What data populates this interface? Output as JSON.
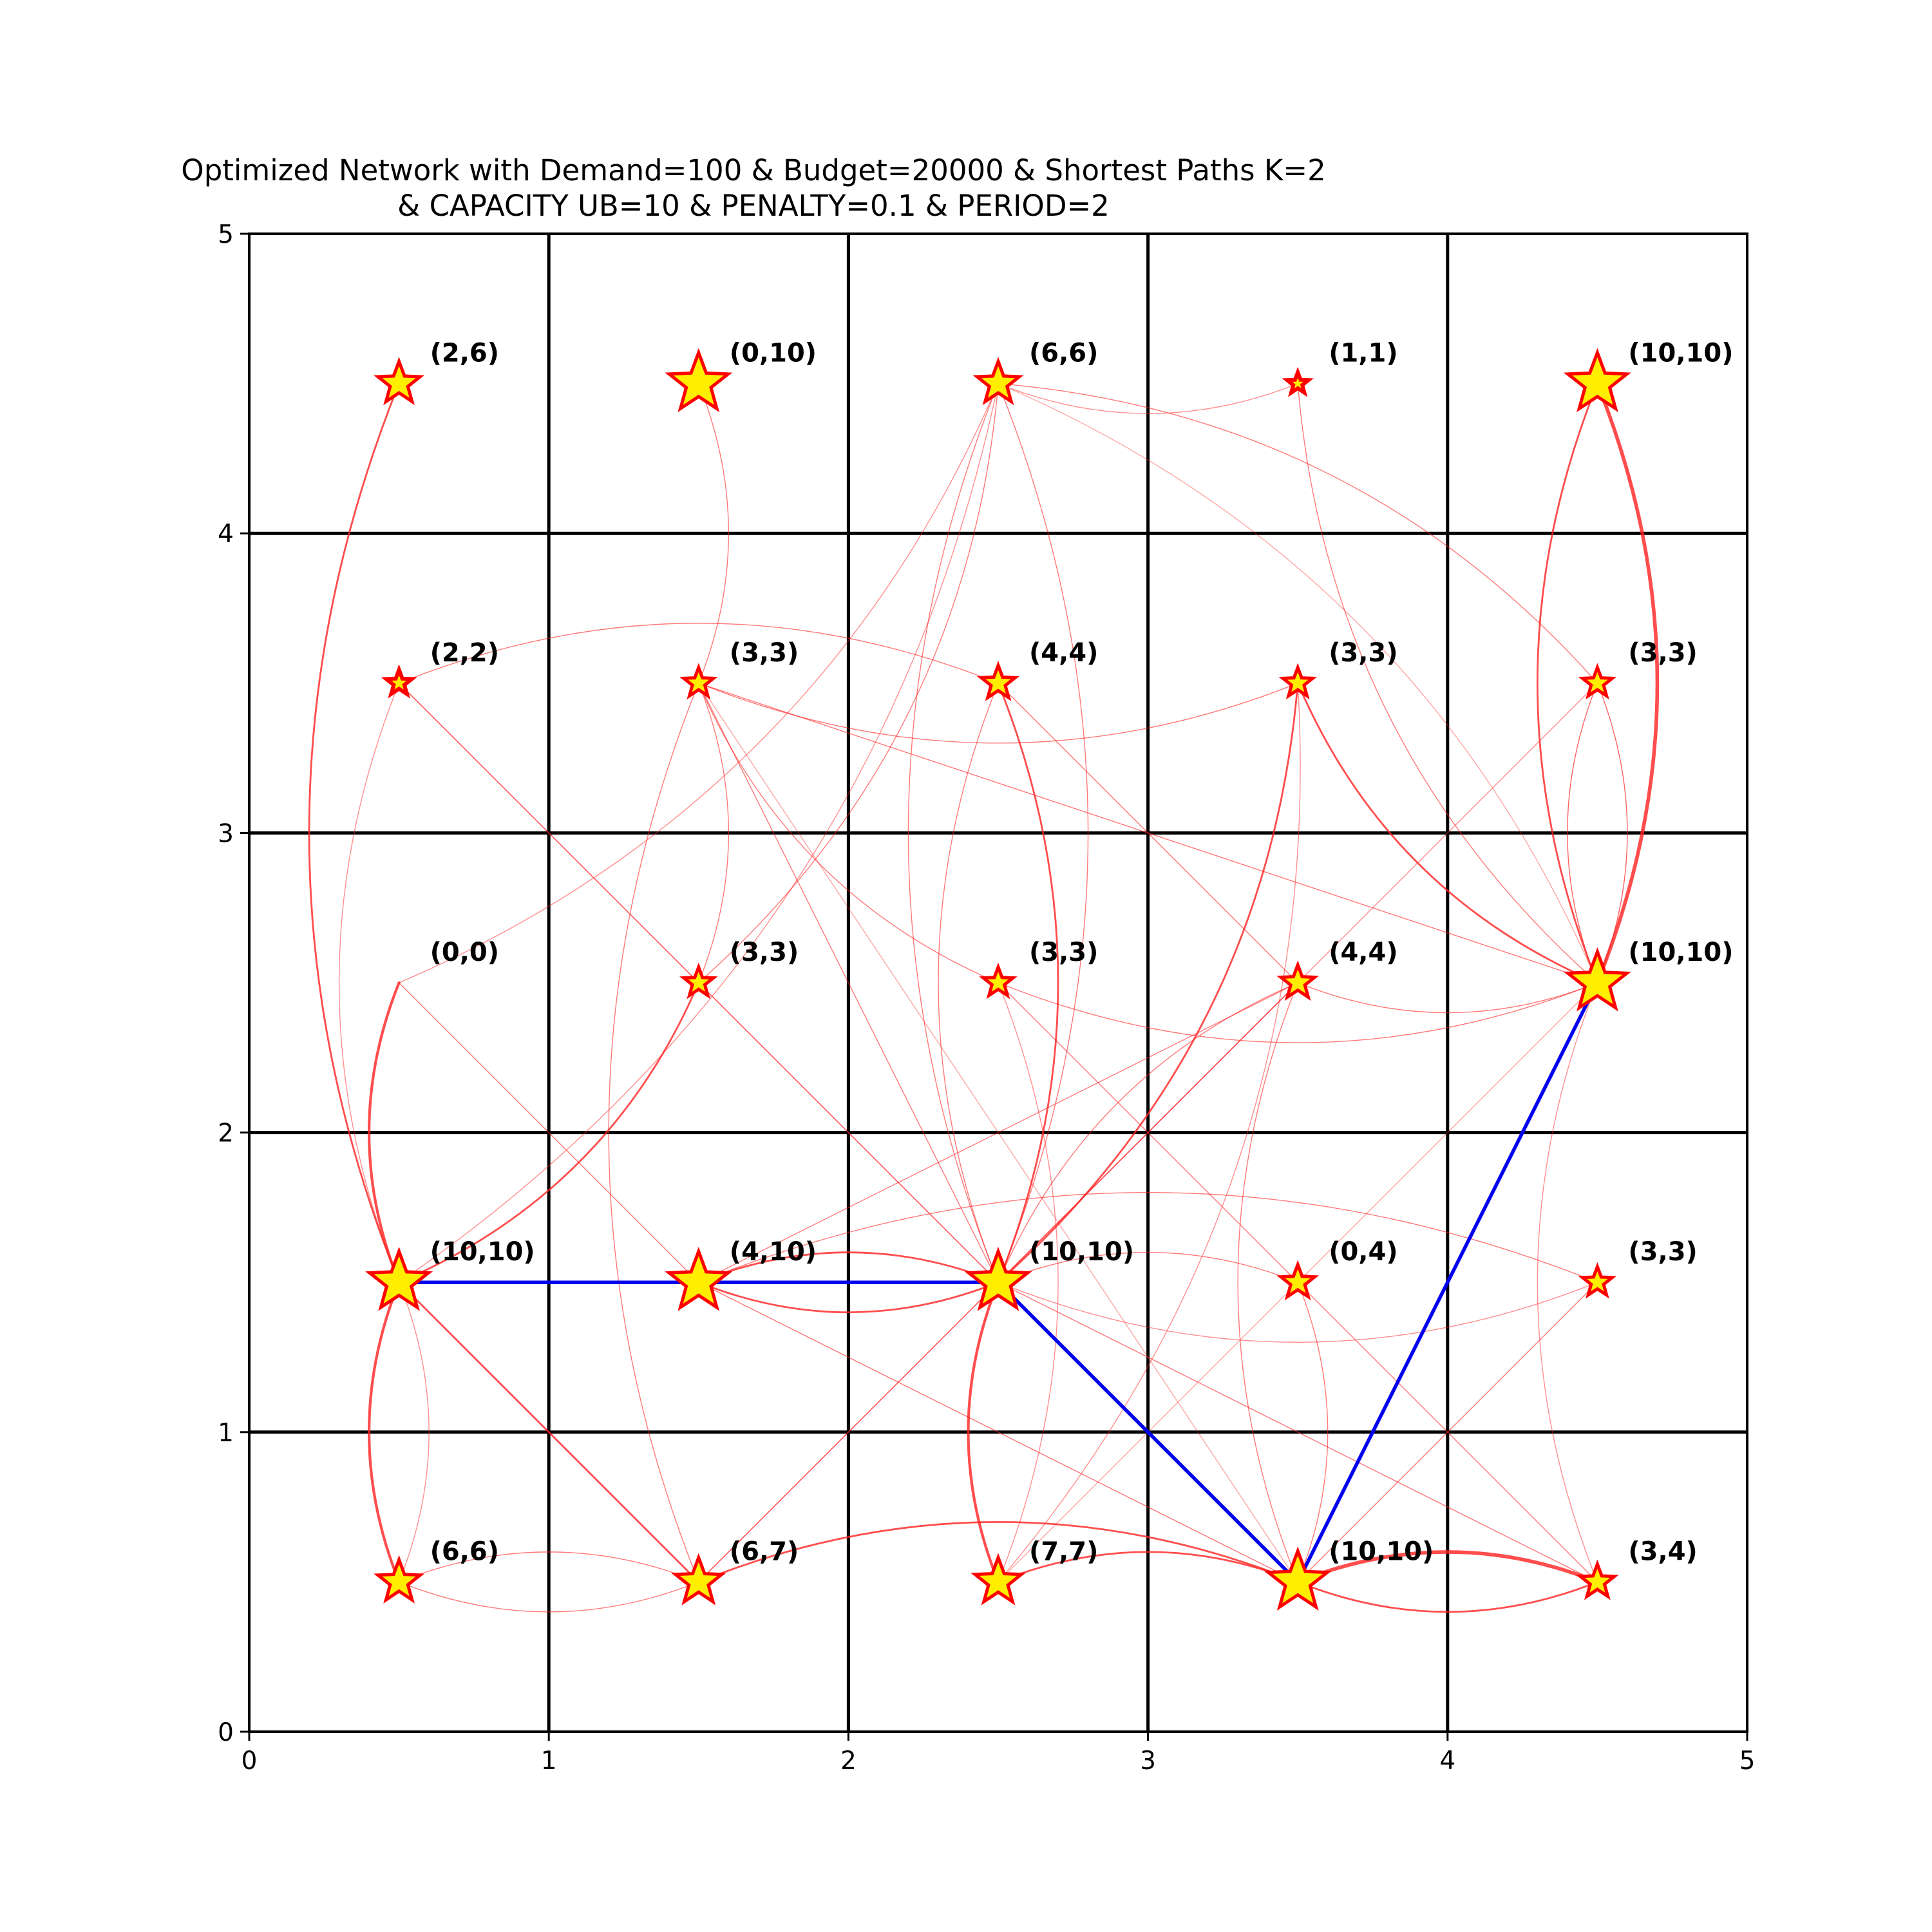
{
  "colors": {
    "edge": "#ff2020",
    "route": "#0000ee",
    "star_fill": "#ffee00",
    "star_edge": "#ff0000",
    "grid": "#000000"
  },
  "chart_data": {
    "type": "network",
    "title": [
      "Optimized Network with Demand=100 & Budget=20000 & Shortest Paths K=2",
      "& CAPACITY UB=10 & PENALTY=0.1 & PERIOD=2"
    ],
    "xlim": [
      0,
      5
    ],
    "ylim": [
      0,
      5
    ],
    "xticks": [
      "0",
      "1",
      "2",
      "3",
      "4",
      "5"
    ],
    "yticks": [
      "0",
      "1",
      "2",
      "3",
      "4",
      "5"
    ],
    "grid": true,
    "nodes": [
      {
        "x": 0.5,
        "y": 4.5,
        "label": "(2,6)",
        "size": 6
      },
      {
        "x": 1.5,
        "y": 4.5,
        "label": "(0,10)",
        "size": 10
      },
      {
        "x": 2.5,
        "y": 4.5,
        "label": "(6,6)",
        "size": 6
      },
      {
        "x": 3.5,
        "y": 4.5,
        "label": "(1,1)",
        "size": 1
      },
      {
        "x": 4.5,
        "y": 4.5,
        "label": "(10,10)",
        "size": 10
      },
      {
        "x": 0.5,
        "y": 3.5,
        "label": "(2,2)",
        "size": 2
      },
      {
        "x": 1.5,
        "y": 3.5,
        "label": "(3,3)",
        "size": 3
      },
      {
        "x": 2.5,
        "y": 3.5,
        "label": "(4,4)",
        "size": 4
      },
      {
        "x": 3.5,
        "y": 3.5,
        "label": "(3,3)",
        "size": 3
      },
      {
        "x": 4.5,
        "y": 3.5,
        "label": "(3,3)",
        "size": 3
      },
      {
        "x": 0.5,
        "y": 2.5,
        "label": "(0,0)",
        "size": 0
      },
      {
        "x": 1.5,
        "y": 2.5,
        "label": "(3,3)",
        "size": 3
      },
      {
        "x": 2.5,
        "y": 2.5,
        "label": "(3,3)",
        "size": 3
      },
      {
        "x": 3.5,
        "y": 2.5,
        "label": "(4,4)",
        "size": 4
      },
      {
        "x": 4.5,
        "y": 2.5,
        "label": "(10,10)",
        "size": 10
      },
      {
        "x": 0.5,
        "y": 1.5,
        "label": "(10,10)",
        "size": 10
      },
      {
        "x": 1.5,
        "y": 1.5,
        "label": "(4,10)",
        "size": 10
      },
      {
        "x": 2.5,
        "y": 1.5,
        "label": "(10,10)",
        "size": 10
      },
      {
        "x": 3.5,
        "y": 1.5,
        "label": "(0,4)",
        "size": 4
      },
      {
        "x": 4.5,
        "y": 1.5,
        "label": "(3,3)",
        "size": 3
      },
      {
        "x": 0.5,
        "y": 0.5,
        "label": "(6,6)",
        "size": 6
      },
      {
        "x": 1.5,
        "y": 0.5,
        "label": "(6,7)",
        "size": 7
      },
      {
        "x": 2.5,
        "y": 0.5,
        "label": "(7,7)",
        "size": 7
      },
      {
        "x": 3.5,
        "y": 0.5,
        "label": "(10,10)",
        "size": 10
      },
      {
        "x": 4.5,
        "y": 0.5,
        "label": "(3,4)",
        "size": 4
      }
    ],
    "edges": [
      {
        "from": [
          0.5,
          1.5
        ],
        "to": [
          0.5,
          4.5
        ],
        "bend": 0.2,
        "width": 2,
        "opacity": 0.8
      },
      {
        "from": [
          1.5,
          4.5
        ],
        "to": [
          1.5,
          3.5
        ],
        "bend": 0.2,
        "width": 1,
        "opacity": 0.6
      },
      {
        "from": [
          2.5,
          4.5
        ],
        "to": [
          4.5,
          3.5
        ],
        "bend": 0.2,
        "width": 1,
        "opacity": 0.6
      },
      {
        "from": [
          2.5,
          4.5
        ],
        "to": [
          2.5,
          1.5
        ],
        "bend": 0.2,
        "width": 1,
        "opacity": 0.6
      },
      {
        "from": [
          2.5,
          4.5
        ],
        "to": [
          2.5,
          1.5
        ],
        "bend": -0.2,
        "width": 1,
        "opacity": 0.6
      },
      {
        "from": [
          2.5,
          4.5
        ],
        "to": [
          1.5,
          2.5
        ],
        "bend": 0.2,
        "width": 1,
        "opacity": 0.6
      },
      {
        "from": [
          2.5,
          4.5
        ],
        "to": [
          0.5,
          2.5
        ],
        "bend": 0.2,
        "width": 1,
        "opacity": 0.5
      },
      {
        "from": [
          2.5,
          4.5
        ],
        "to": [
          3.5,
          4.5
        ],
        "bend": -0.2,
        "width": 1,
        "opacity": 0.5
      },
      {
        "from": [
          2.5,
          4.5
        ],
        "to": [
          0.5,
          1.5
        ],
        "bend": 0.2,
        "width": 1,
        "opacity": 0.5
      },
      {
        "from": [
          2.5,
          4.5
        ],
        "to": [
          4.5,
          2.5
        ],
        "bend": 0.2,
        "width": 1,
        "opacity": 0.4
      },
      {
        "from": [
          3.5,
          4.5
        ],
        "to": [
          4.5,
          2.5
        ],
        "bend": -0.2,
        "width": 1,
        "opacity": 0.6
      },
      {
        "from": [
          4.5,
          4.5
        ],
        "to": [
          4.5,
          2.5
        ],
        "bend": 0.2,
        "width": 4,
        "opacity": 0.8
      },
      {
        "from": [
          4.5,
          4.5
        ],
        "to": [
          4.5,
          2.5
        ],
        "bend": -0.2,
        "width": 2,
        "opacity": 0.8
      },
      {
        "from": [
          0.5,
          3.5
        ],
        "to": [
          2.5,
          3.5
        ],
        "bend": 0.2,
        "width": 1,
        "opacity": 0.6
      },
      {
        "from": [
          0.5,
          3.5
        ],
        "to": [
          2.5,
          1.5
        ],
        "bend": 0.0,
        "width": 1,
        "opacity": 0.5
      },
      {
        "from": [
          0.5,
          3.5
        ],
        "to": [
          1.5,
          2.5
        ],
        "bend": 0.0,
        "width": 1,
        "opacity": 0.6
      },
      {
        "from": [
          0.5,
          3.5
        ],
        "to": [
          0.5,
          1.5
        ],
        "bend": -0.2,
        "width": 1,
        "opacity": 0.5
      },
      {
        "from": [
          1.5,
          3.5
        ],
        "to": [
          3.5,
          3.5
        ],
        "bend": -0.2,
        "width": 1,
        "opacity": 0.6
      },
      {
        "from": [
          1.5,
          3.5
        ],
        "to": [
          1.5,
          2.5
        ],
        "bend": 0.2,
        "width": 1,
        "opacity": 0.6
      },
      {
        "from": [
          1.5,
          3.5
        ],
        "to": [
          2.5,
          1.5
        ],
        "bend": 0.0,
        "width": 1,
        "opacity": 0.6
      },
      {
        "from": [
          1.5,
          3.5
        ],
        "to": [
          4.5,
          2.5
        ],
        "bend": 0.0,
        "width": 1,
        "opacity": 0.6
      },
      {
        "from": [
          1.5,
          3.5
        ],
        "to": [
          1.5,
          0.5
        ],
        "bend": -0.2,
        "width": 1,
        "opacity": 0.6
      },
      {
        "from": [
          1.5,
          3.5
        ],
        "to": [
          3.5,
          0.5
        ],
        "bend": 0.0,
        "width": 1,
        "opacity": 0.4
      },
      {
        "from": [
          2.5,
          3.5
        ],
        "to": [
          2.5,
          1.5
        ],
        "bend": 0.2,
        "width": 2,
        "opacity": 0.8
      },
      {
        "from": [
          2.5,
          3.5
        ],
        "to": [
          2.5,
          1.5
        ],
        "bend": -0.2,
        "width": 1,
        "opacity": 0.6
      },
      {
        "from": [
          2.5,
          3.5
        ],
        "to": [
          3.5,
          2.5
        ],
        "bend": 0.0,
        "width": 1,
        "opacity": 0.6
      },
      {
        "from": [
          3.5,
          3.5
        ],
        "to": [
          2.5,
          1.5
        ],
        "bend": 0.2,
        "width": 2,
        "opacity": 0.8
      },
      {
        "from": [
          3.5,
          3.5
        ],
        "to": [
          4.5,
          2.5
        ],
        "bend": -0.2,
        "width": 2,
        "opacity": 0.8
      },
      {
        "from": [
          3.5,
          3.5
        ],
        "to": [
          2.5,
          0.5
        ],
        "bend": 0.2,
        "width": 1,
        "opacity": 0.5
      },
      {
        "from": [
          4.5,
          3.5
        ],
        "to": [
          4.5,
          2.5
        ],
        "bend": 0.2,
        "width": 1,
        "opacity": 0.7
      },
      {
        "from": [
          4.5,
          3.5
        ],
        "to": [
          4.5,
          2.5
        ],
        "bend": -0.2,
        "width": 1,
        "opacity": 0.7
      },
      {
        "from": [
          4.5,
          3.5
        ],
        "to": [
          2.5,
          1.5
        ],
        "bend": 0.0,
        "width": 1,
        "opacity": 0.5
      },
      {
        "from": [
          0.5,
          2.5
        ],
        "to": [
          0.5,
          1.5
        ],
        "bend": -0.2,
        "width": 3,
        "opacity": 0.8
      },
      {
        "from": [
          0.5,
          2.5
        ],
        "to": [
          1.5,
          1.5
        ],
        "bend": 0.0,
        "width": 1,
        "opacity": 0.6
      },
      {
        "from": [
          1.5,
          2.5
        ],
        "to": [
          0.5,
          1.5
        ],
        "bend": 0.2,
        "width": 2,
        "opacity": 0.8
      },
      {
        "from": [
          1.5,
          2.5
        ],
        "to": [
          2.5,
          1.5
        ],
        "bend": 0.0,
        "width": 1,
        "opacity": 0.6
      },
      {
        "from": [
          2.5,
          2.5
        ],
        "to": [
          4.5,
          2.5
        ],
        "bend": -0.2,
        "width": 1,
        "opacity": 0.6
      },
      {
        "from": [
          2.5,
          2.5
        ],
        "to": [
          1.5,
          3.5
        ],
        "bend": 0.2,
        "width": 1,
        "opacity": 0.6
      },
      {
        "from": [
          2.5,
          2.5
        ],
        "to": [
          4.5,
          0.5
        ],
        "bend": 0.0,
        "width": 1,
        "opacity": 0.6
      },
      {
        "from": [
          2.5,
          2.5
        ],
        "to": [
          2.5,
          0.5
        ],
        "bend": 0.2,
        "width": 1,
        "opacity": 0.5
      },
      {
        "from": [
          3.5,
          2.5
        ],
        "to": [
          4.5,
          2.5
        ],
        "bend": -0.2,
        "width": 1,
        "opacity": 0.6
      },
      {
        "from": [
          3.5,
          2.5
        ],
        "to": [
          2.5,
          1.5
        ],
        "bend": 0.0,
        "width": 1,
        "opacity": 0.6
      },
      {
        "from": [
          3.5,
          2.5
        ],
        "to": [
          1.5,
          0.5
        ],
        "bend": 0.0,
        "width": 1,
        "opacity": 0.6
      },
      {
        "from": [
          3.5,
          2.5
        ],
        "to": [
          3.5,
          0.5
        ],
        "bend": -0.2,
        "width": 1,
        "opacity": 0.6
      },
      {
        "from": [
          4.5,
          2.5
        ],
        "to": [
          4.5,
          0.5
        ],
        "bend": -0.2,
        "width": 1,
        "opacity": 0.5
      },
      {
        "from": [
          4.5,
          2.5
        ],
        "to": [
          2.5,
          0.5
        ],
        "bend": 0.0,
        "width": 1,
        "opacity": 0.4
      },
      {
        "from": [
          0.5,
          1.5
        ],
        "to": [
          2.5,
          1.5
        ],
        "bend": 0.0,
        "width": 2,
        "opacity": 0.8
      },
      {
        "from": [
          0.5,
          1.5
        ],
        "to": [
          0.5,
          0.5
        ],
        "bend": -0.2,
        "width": 3,
        "opacity": 0.8
      },
      {
        "from": [
          0.5,
          1.5
        ],
        "to": [
          0.5,
          0.5
        ],
        "bend": 0.2,
        "width": 1,
        "opacity": 0.5
      },
      {
        "from": [
          0.5,
          1.5
        ],
        "to": [
          1.5,
          0.5
        ],
        "bend": 0.0,
        "width": 2,
        "opacity": 0.8
      },
      {
        "from": [
          1.5,
          1.5
        ],
        "to": [
          2.5,
          1.5
        ],
        "bend": 0.2,
        "width": 2,
        "opacity": 0.8
      },
      {
        "from": [
          1.5,
          1.5
        ],
        "to": [
          2.5,
          1.5
        ],
        "bend": -0.2,
        "width": 2,
        "opacity": 0.8
      },
      {
        "from": [
          1.5,
          1.5
        ],
        "to": [
          4.5,
          1.5
        ],
        "bend": 0.2,
        "width": 1,
        "opacity": 0.6
      },
      {
        "from": [
          1.5,
          1.5
        ],
        "to": [
          3.5,
          0.5
        ],
        "bend": 0.0,
        "width": 1,
        "opacity": 0.6
      },
      {
        "from": [
          1.5,
          1.5
        ],
        "to": [
          3.5,
          2.5
        ],
        "bend": 0.0,
        "width": 1,
        "opacity": 0.6
      },
      {
        "from": [
          2.5,
          1.5
        ],
        "to": [
          3.5,
          1.5
        ],
        "bend": 0.2,
        "width": 1,
        "opacity": 0.6
      },
      {
        "from": [
          2.5,
          1.5
        ],
        "to": [
          4.5,
          1.5
        ],
        "bend": -0.2,
        "width": 1,
        "opacity": 0.5
      },
      {
        "from": [
          2.5,
          1.5
        ],
        "to": [
          2.5,
          0.5
        ],
        "bend": -0.2,
        "width": 3,
        "opacity": 0.8
      },
      {
        "from": [
          2.5,
          1.5
        ],
        "to": [
          3.5,
          0.5
        ],
        "bend": 0.0,
        "width": 2,
        "opacity": 0.8
      },
      {
        "from": [
          2.5,
          1.5
        ],
        "to": [
          1.5,
          0.5
        ],
        "bend": 0.0,
        "width": 1,
        "opacity": 0.6
      },
      {
        "from": [
          2.5,
          1.5
        ],
        "to": [
          4.5,
          0.5
        ],
        "bend": 0.0,
        "width": 1,
        "opacity": 0.6
      },
      {
        "from": [
          2.5,
          1.5
        ],
        "to": [
          3.5,
          2.5
        ],
        "bend": 0.2,
        "width": 1,
        "opacity": 0.6
      },
      {
        "from": [
          3.5,
          1.5
        ],
        "to": [
          3.5,
          0.5
        ],
        "bend": 0.2,
        "width": 1,
        "opacity": 0.6
      },
      {
        "from": [
          4.5,
          1.5
        ],
        "to": [
          3.5,
          0.5
        ],
        "bend": 0.0,
        "width": 1,
        "opacity": 0.6
      },
      {
        "from": [
          0.5,
          0.5
        ],
        "to": [
          1.5,
          0.5
        ],
        "bend": 0.2,
        "width": 1,
        "opacity": 0.6
      },
      {
        "from": [
          0.5,
          0.5
        ],
        "to": [
          1.5,
          0.5
        ],
        "bend": -0.2,
        "width": 1,
        "opacity": 0.6
      },
      {
        "from": [
          1.5,
          0.5
        ],
        "to": [
          3.5,
          0.5
        ],
        "bend": 0.2,
        "width": 2,
        "opacity": 0.8
      },
      {
        "from": [
          2.5,
          0.5
        ],
        "to": [
          3.5,
          0.5
        ],
        "bend": 0.2,
        "width": 2,
        "opacity": 0.8
      },
      {
        "from": [
          3.5,
          0.5
        ],
        "to": [
          4.5,
          0.5
        ],
        "bend": 0.2,
        "width": 4,
        "opacity": 0.8
      },
      {
        "from": [
          3.5,
          0.5
        ],
        "to": [
          4.5,
          0.5
        ],
        "bend": -0.2,
        "width": 2,
        "opacity": 0.8
      }
    ],
    "route": [
      [
        0.5,
        1.5
      ],
      [
        1.5,
        1.5
      ],
      [
        2.5,
        1.5
      ],
      [
        3.5,
        0.5
      ],
      [
        4.5,
        2.5
      ]
    ]
  }
}
